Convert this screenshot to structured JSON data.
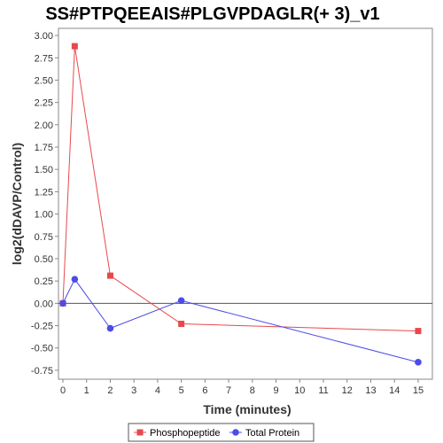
{
  "chart_data": {
    "type": "line",
    "title": "SS#PTPQEEAIS#PLGVPDAGLR(+ 3)_v1",
    "xlabel": "Time (minutes)",
    "ylabel": "log2(dDAVP/Control)",
    "xlim": [
      0,
      15.6
    ],
    "ylim": [
      -0.85,
      3.08
    ],
    "xticks": [
      0,
      1,
      2,
      3,
      4,
      5,
      6,
      7,
      8,
      9,
      10,
      11,
      12,
      13,
      14,
      15
    ],
    "yticks": [
      -0.75,
      -0.5,
      -0.25,
      0.0,
      0.25,
      0.5,
      0.75,
      1.0,
      1.25,
      1.5,
      1.75,
      2.0,
      2.25,
      2.5,
      2.75,
      3.0
    ],
    "ytick_labels": [
      "-0.75",
      "-0.50",
      "-0.25",
      "0.00",
      "0.25",
      "0.50",
      "0.75",
      "1.00",
      "1.25",
      "1.50",
      "1.75",
      "2.00",
      "2.25",
      "2.50",
      "2.75",
      "3.00"
    ],
    "grid": false,
    "zero_line": true,
    "legend_position": "bottom",
    "series": [
      {
        "name": "Phosphopeptide",
        "color": "#e8484c",
        "marker": "square",
        "x": [
          0,
          0.5,
          2,
          5,
          15
        ],
        "y": [
          0.0,
          2.88,
          0.31,
          -0.23,
          -0.31
        ]
      },
      {
        "name": "Total Protein",
        "color": "#4c4ce8",
        "marker": "circle",
        "x": [
          0,
          0.5,
          2,
          5,
          15
        ],
        "y": [
          0.0,
          0.27,
          -0.28,
          0.03,
          -0.66
        ]
      }
    ]
  }
}
